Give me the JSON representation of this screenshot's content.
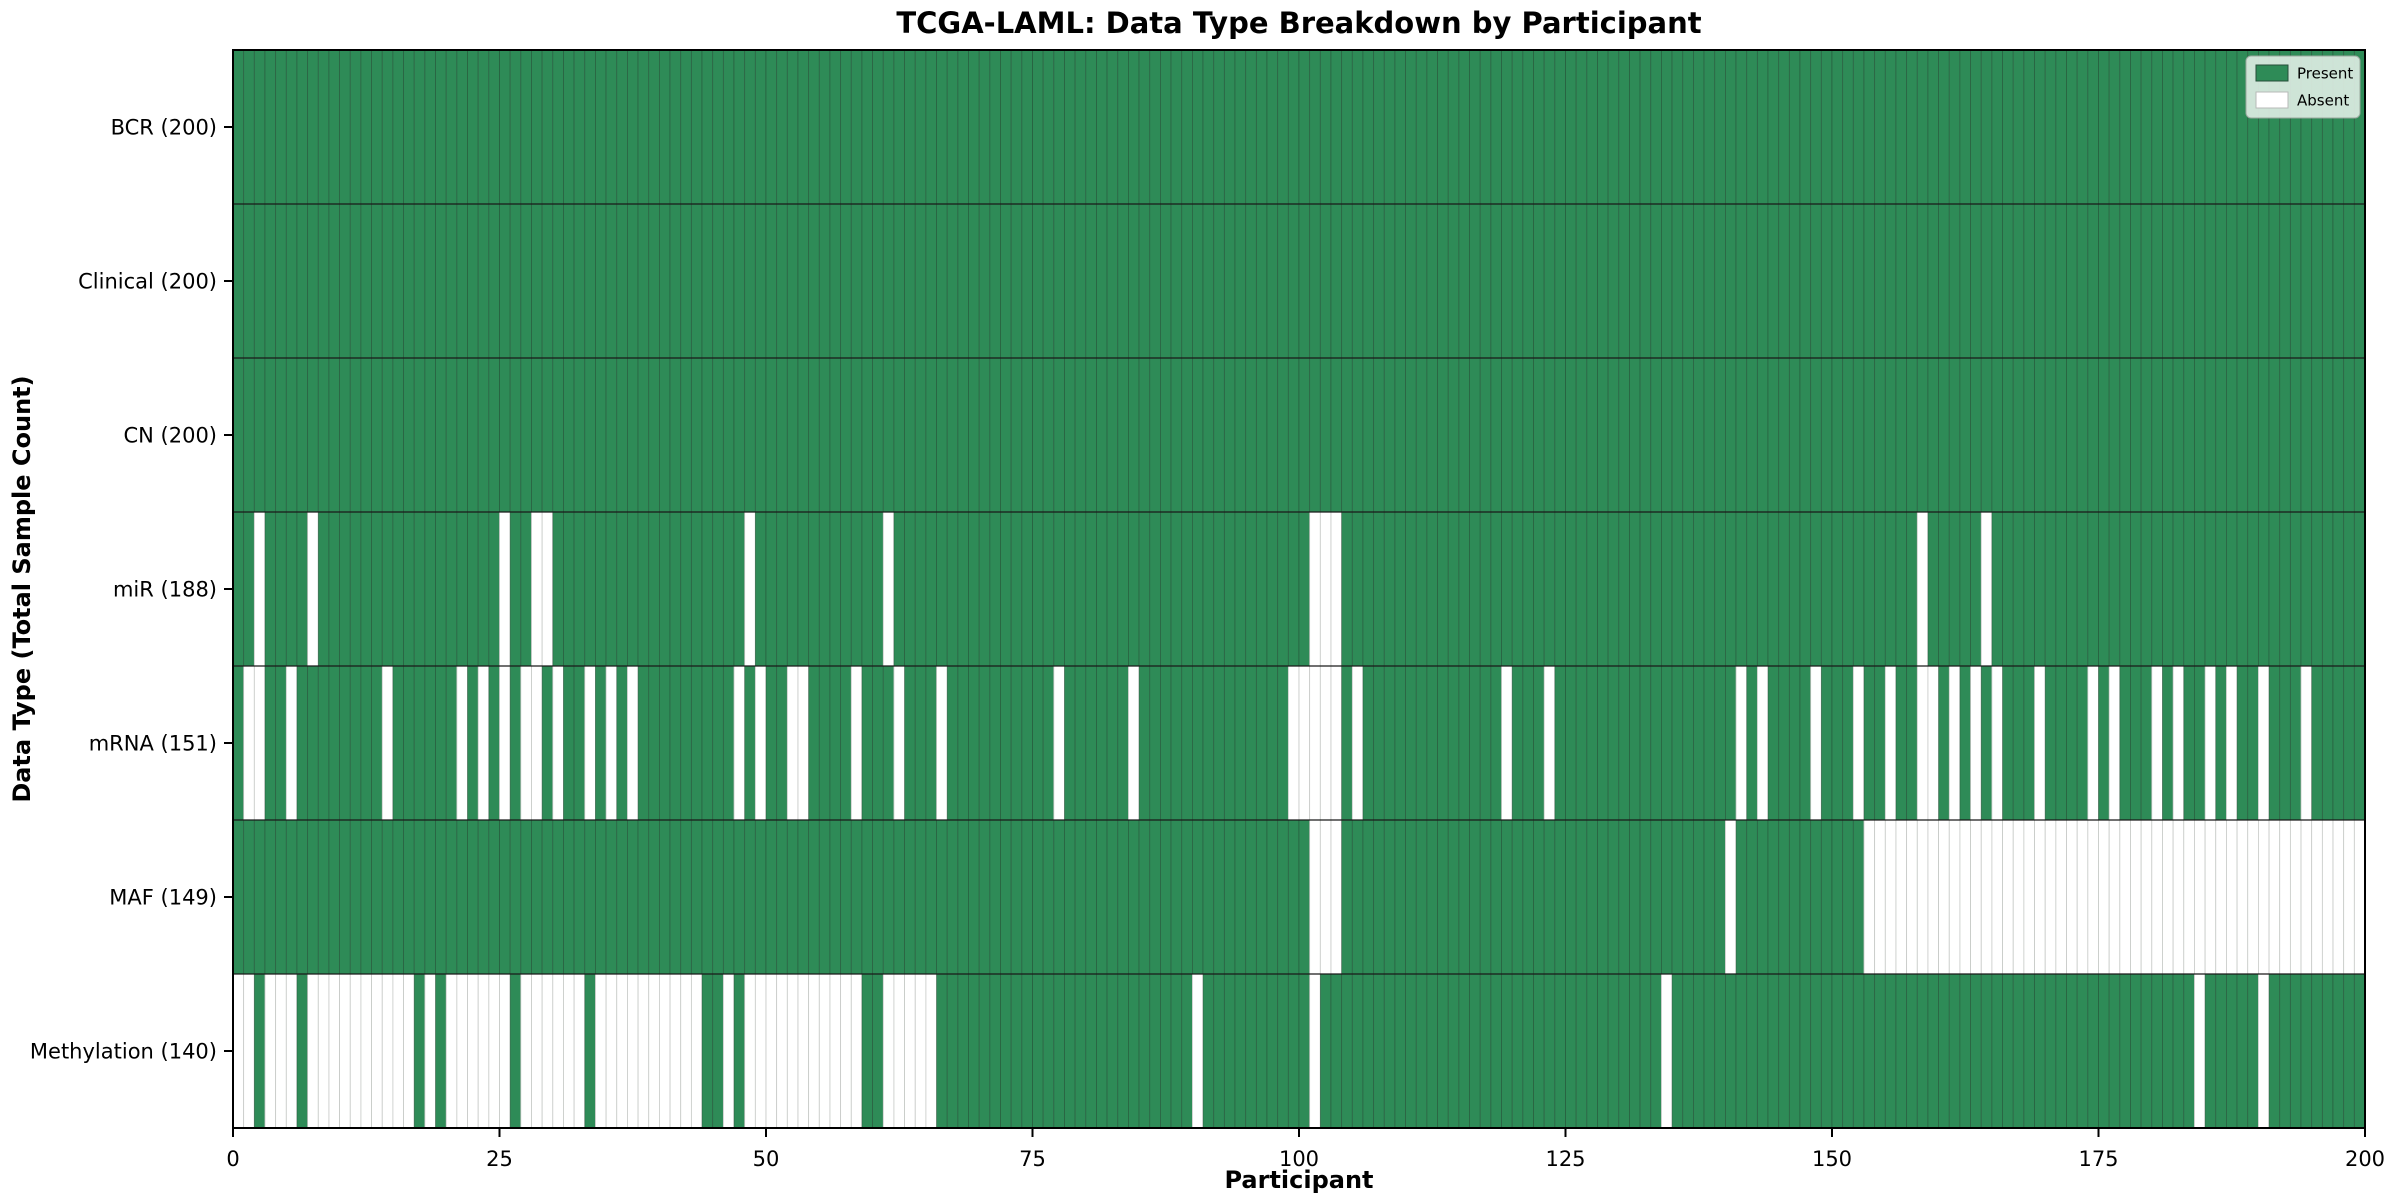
{
  "chart_data": {
    "type": "heatmap",
    "title": "TCGA-LAML: Data Type Breakdown by Participant",
    "xlabel": "Participant",
    "ylabel": "Data Type (Total Sample Count)",
    "xlim": [
      0,
      200
    ],
    "n_participants": 200,
    "x_ticks": [
      0,
      25,
      50,
      75,
      100,
      125,
      150,
      175,
      200
    ],
    "grid": false,
    "legend_position": "upper right",
    "legend": [
      {
        "label": "Present",
        "color": "#2e8b57"
      },
      {
        "label": "Absent",
        "color": "#ffffff"
      }
    ],
    "colors": {
      "present": "#2e8b57",
      "absent": "#ffffff",
      "present_edge": "#24453384",
      "absent_edge": "#c6c9c6",
      "row_separator": "#1a1a1a",
      "spine": "#000000"
    },
    "rows": [
      {
        "name": "BCR",
        "total": 200,
        "label": "BCR (200)",
        "absent": []
      },
      {
        "name": "Clinical",
        "total": 200,
        "label": "Clinical (200)",
        "absent": []
      },
      {
        "name": "CN",
        "total": 200,
        "label": "CN (200)",
        "absent": []
      },
      {
        "name": "miR",
        "total": 188,
        "label": "miR (188)",
        "absent": [
          2,
          7,
          25,
          28,
          29,
          48,
          61,
          101,
          102,
          103,
          158,
          164
        ]
      },
      {
        "name": "mRNA",
        "total": 151,
        "label": "mRNA (151)",
        "absent": [
          1,
          2,
          5,
          14,
          21,
          23,
          25,
          27,
          28,
          30,
          33,
          35,
          37,
          47,
          49,
          52,
          53,
          58,
          62,
          66,
          77,
          84,
          99,
          100,
          101,
          102,
          103,
          105,
          119,
          123,
          141,
          143,
          148,
          152,
          155,
          158,
          159,
          161,
          163,
          165,
          169,
          174,
          176,
          180,
          182,
          185,
          187,
          190,
          194
        ]
      },
      {
        "name": "MAF",
        "total": 149,
        "label": "MAF (149)",
        "absent": [
          101,
          102,
          103,
          140,
          153,
          154,
          155,
          156,
          157,
          158,
          159,
          160,
          161,
          162,
          163,
          164,
          165,
          166,
          167,
          168,
          169,
          170,
          171,
          172,
          173,
          174,
          175,
          176,
          177,
          178,
          179,
          180,
          181,
          182,
          183,
          184,
          185,
          186,
          187,
          188,
          189,
          190,
          191,
          192,
          193,
          194,
          195,
          196,
          197,
          198,
          199
        ]
      },
      {
        "name": "Methylation",
        "total": 140,
        "label": "Methylation (140)",
        "absent": [
          0,
          1,
          3,
          4,
          5,
          7,
          8,
          9,
          10,
          11,
          12,
          13,
          14,
          15,
          16,
          18,
          20,
          21,
          22,
          23,
          24,
          25,
          27,
          28,
          29,
          30,
          31,
          32,
          34,
          35,
          36,
          37,
          38,
          39,
          40,
          41,
          42,
          43,
          46,
          48,
          49,
          50,
          51,
          52,
          53,
          54,
          55,
          56,
          57,
          58,
          61,
          62,
          63,
          64,
          65,
          90,
          101,
          134,
          184,
          190
        ]
      }
    ]
  }
}
